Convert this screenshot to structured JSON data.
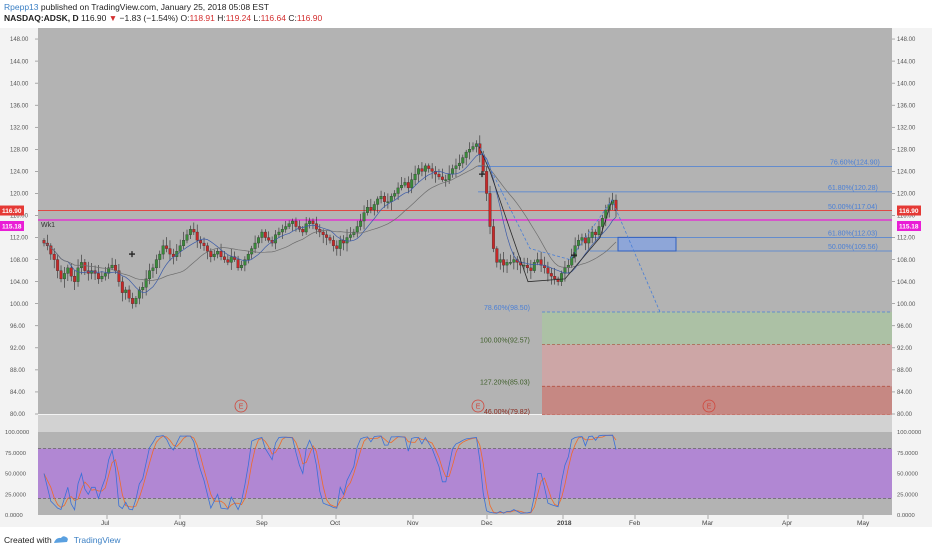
{
  "header": {
    "user": "Rpepp13",
    "published_text": "published on TradingView.com, January 25, 2018 05:08 EST",
    "symbol": "NASDAQ:ADSK, D",
    "last": "116.90",
    "change": "−1.83 (−1.54%)",
    "o_label": "O:",
    "o_value": "118.91",
    "h_label": "H:",
    "h_value": "119.24",
    "l_label": "L:",
    "l_value": "116.64",
    "c_label": "C:",
    "c_value": "116.90"
  },
  "footer": {
    "created_with": "Created with",
    "brand": "TradingView"
  },
  "colors": {
    "background": "#b3b3b3",
    "bull": "#3a8a3a",
    "bear": "#c62828",
    "fib_line": "#4a7fd6",
    "red_line": "#e53935",
    "magenta_line": "#e91ed6",
    "stoch_band": "#b07fd8",
    "k_line": "#3a6fd8",
    "d_line": "#f06a2a"
  },
  "chart_data": [
    {
      "type": "candlestick",
      "title": "",
      "y_ticks": [
        "148.00",
        "144.00",
        "140.00",
        "136.00",
        "132.00",
        "128.00",
        "124.00",
        "120.00",
        "116.00",
        "112.00",
        "108.00",
        "104.00",
        "100.00",
        "96.00",
        "92.00",
        "88.00",
        "84.00",
        "80.00"
      ],
      "ylim": [
        80,
        150
      ],
      "x_ticks": [
        "Jul",
        "Aug",
        "Sep",
        "Oct",
        "Nov",
        "Dec",
        "2018",
        "Feb",
        "Mar",
        "Apr",
        "May"
      ],
      "price_labels": {
        "last": "116.90",
        "wk1": "115.18"
      },
      "wk1_label": "Wk1",
      "fib_labels": [
        {
          "text": "76.60%(124.90)",
          "value": 124.9
        },
        {
          "text": "61.80%(120.28)",
          "value": 120.28
        },
        {
          "text": "50.00%(117.04)",
          "value": 117.04
        },
        {
          "text": "61.80%(112.03)",
          "value": 112.03
        },
        {
          "text": "50.00%(109.56)",
          "value": 109.56
        },
        {
          "text": "78.60%(98.50)",
          "value": 98.5
        },
        {
          "text": "100.00%(92.57)",
          "value": 92.57
        },
        {
          "text": "127.20%(85.03)",
          "value": 85.03
        },
        {
          "text": "46.00%(79.82)",
          "value": 79.82
        }
      ],
      "earnings_marker": "E",
      "closes": [
        111,
        110.5,
        109,
        108,
        106,
        104.5,
        105.5,
        106.5,
        105,
        104,
        106.5,
        107.5,
        106,
        105.5,
        106,
        105.5,
        104.5,
        105,
        105.5,
        106.5,
        107,
        106,
        104,
        102,
        102.5,
        101,
        100,
        101,
        102.5,
        103,
        104.5,
        106,
        106.5,
        108,
        109,
        110.5,
        110,
        109,
        108.5,
        109.5,
        110.5,
        111.5,
        112.5,
        113.5,
        113,
        111.5,
        111,
        110.5,
        109.5,
        108.5,
        109,
        109.5,
        108.5,
        108,
        107.5,
        108.5,
        108,
        106.5,
        107,
        108,
        109,
        110,
        111,
        112,
        113,
        112,
        111.5,
        111,
        112.5,
        113,
        113.5,
        114,
        114.5,
        115,
        114,
        113.5,
        113,
        114.5,
        115,
        114.5,
        113.5,
        113,
        112.5,
        112,
        111.5,
        110.5,
        110,
        111.5,
        111,
        112,
        112.5,
        113,
        114,
        115,
        116.5,
        117.5,
        117,
        118,
        119,
        119.5,
        118.5,
        118.5,
        119.5,
        120,
        121,
        121.5,
        122,
        121,
        122.5,
        123.5,
        124.5,
        124,
        125,
        124.5,
        124,
        123.5,
        123,
        122.5,
        122.5,
        123.5,
        124.5,
        125,
        125.5,
        126.5,
        127.5,
        128,
        128.5,
        129,
        127,
        124,
        120,
        114,
        110,
        107.5,
        108,
        107,
        107.5,
        107.5,
        108,
        107.5,
        107,
        107,
        106.5,
        106,
        107.5,
        108,
        107,
        106.5,
        105.5,
        105,
        104.5,
        104,
        105.5,
        106.5,
        107,
        108.5,
        110.5,
        111.5,
        112,
        111,
        112,
        113,
        112.5,
        114,
        115.5,
        117,
        118,
        118.8,
        116.9
      ],
      "stoch_ticks": [
        "100.0000",
        "75.0000",
        "50.0000",
        "25.0000",
        "0.0000"
      ],
      "stoch_upper": 80,
      "stoch_lower": 20
    }
  ]
}
